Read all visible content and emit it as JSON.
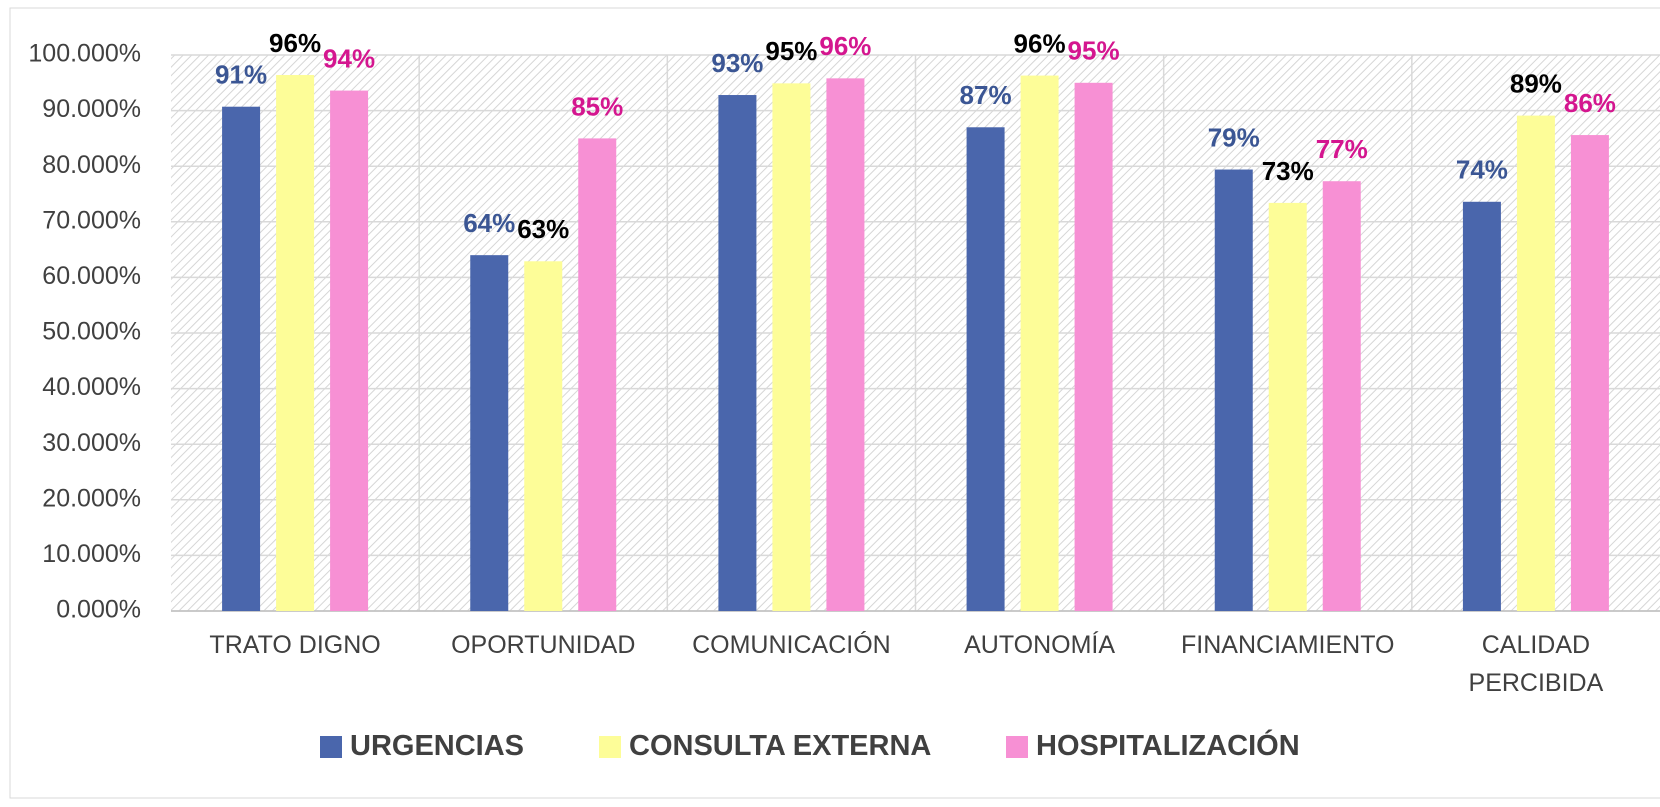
{
  "chart_data": {
    "type": "bar",
    "categories": [
      "TRATO DIGNO",
      "OPORTUNIDAD",
      "COMUNICACIÓN",
      "AUTONOMÍA",
      "FINANCIAMIENTO",
      "CALIDAD PERCIBIDA"
    ],
    "series": [
      {
        "name": "URGENCIAS",
        "color": "#4a66ac",
        "label_color": "#3b5694",
        "values": [
          90.7,
          64.0,
          92.8,
          87.0,
          79.4,
          73.6
        ],
        "value_labels": [
          "91%",
          "64%",
          "93%",
          "87%",
          "79%",
          "74%"
        ]
      },
      {
        "name": "CONSULTA EXTERNA",
        "color": "#fdfd98",
        "label_color": "#000000",
        "values": [
          96.4,
          62.9,
          94.9,
          96.3,
          73.4,
          89.1
        ],
        "value_labels": [
          "96%",
          "63%",
          "95%",
          "96%",
          "73%",
          "89%"
        ]
      },
      {
        "name": "HOSPITALIZACIÓN",
        "color": "#f790d4",
        "label_color": "#d4168f",
        "values": [
          93.6,
          85.0,
          95.8,
          95.0,
          77.3,
          85.6
        ],
        "value_labels": [
          "94%",
          "85%",
          "96%",
          "95%",
          "77%",
          "86%"
        ]
      }
    ],
    "ylim": [
      0,
      100
    ],
    "yticks": [
      {
        "value": 0,
        "label": "0.000%"
      },
      {
        "value": 10,
        "label": "10.000%"
      },
      {
        "value": 20,
        "label": "20.000%"
      },
      {
        "value": 30,
        "label": "30.000%"
      },
      {
        "value": 40,
        "label": "40.000%"
      },
      {
        "value": 50,
        "label": "50.000%"
      },
      {
        "value": 60,
        "label": "60.000%"
      },
      {
        "value": 70,
        "label": "70.000%"
      },
      {
        "value": 80,
        "label": "80.000%"
      },
      {
        "value": 90,
        "label": "90.000%"
      },
      {
        "value": 100,
        "label": "100.000%"
      }
    ],
    "grid": true,
    "legend": "bottom"
  }
}
